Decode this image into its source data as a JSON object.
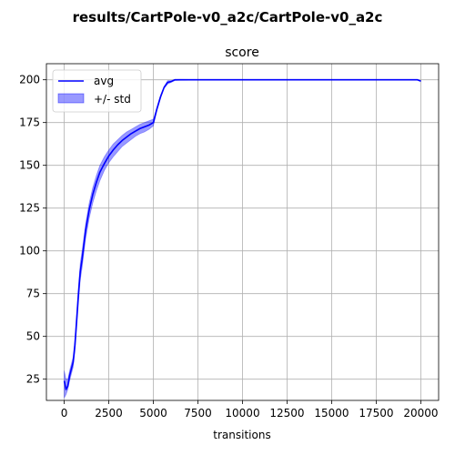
{
  "suptitle": "results/CartPole-v0_a2c/CartPole-v0_a2c",
  "chart_data": {
    "type": "line",
    "title": "score",
    "xlabel": "transitions",
    "ylabel": "",
    "xlim": [
      -1000,
      21000
    ],
    "ylim": [
      12.6,
      209.4
    ],
    "xticks": [
      0,
      2500,
      5000,
      7500,
      10000,
      12500,
      15000,
      17500,
      20000
    ],
    "yticks": [
      25,
      50,
      75,
      100,
      125,
      150,
      175,
      200
    ],
    "grid": true,
    "legend_placement": "upper-left",
    "series": [
      {
        "name": "avg",
        "kind": "line",
        "color": "#0000ff",
        "x": [
          0,
          100,
          200,
          300,
          400,
          500,
          600,
          700,
          800,
          900,
          1000,
          1200,
          1400,
          1600,
          1800,
          2000,
          2250,
          2500,
          2750,
          3000,
          3250,
          3500,
          3750,
          4000,
          4250,
          4500,
          4750,
          5000,
          5200,
          5400,
          5600,
          5800,
          6000,
          6200,
          6500,
          7000,
          7500,
          10000,
          15000,
          19800,
          20000
        ],
        "y": [
          24,
          19,
          21,
          27,
          31,
          35,
          45,
          60,
          75,
          88,
          95,
          112,
          124,
          133,
          140,
          146,
          151,
          155.5,
          159,
          162,
          164.5,
          166.5,
          168.5,
          170,
          171.5,
          172.5,
          173.5,
          175,
          183,
          190,
          195.5,
          198.5,
          199,
          200,
          200,
          200,
          200,
          200,
          200,
          200,
          199.2
        ]
      },
      {
        "name": "+/- std",
        "kind": "band",
        "color": "#0000ff",
        "opacity": 0.4,
        "x": [
          0,
          100,
          200,
          300,
          400,
          500,
          600,
          700,
          800,
          900,
          1000,
          1200,
          1400,
          1600,
          1800,
          2000,
          2250,
          2500,
          2750,
          3000,
          3250,
          3500,
          3750,
          4000,
          4250,
          4500,
          4750,
          5000,
          5200,
          5400,
          5600,
          5800,
          6000,
          6200,
          6500,
          7000,
          7500,
          10000,
          15000,
          19800,
          20000
        ],
        "lower": [
          14,
          16,
          19,
          24,
          28,
          32,
          41,
          55,
          70,
          83,
          90,
          107,
          119,
          128,
          135,
          141,
          147,
          151.5,
          155,
          158,
          161,
          163,
          165,
          167,
          168.5,
          169.5,
          171,
          173,
          182,
          189,
          195,
          197.5,
          198.5,
          199.5,
          199.7,
          199.8,
          199.8,
          199.8,
          199.8,
          199.8,
          199
        ],
        "upper": [
          30,
          25,
          25,
          30,
          34,
          38,
          49,
          64,
          80,
          93,
          100,
          116,
          128,
          137,
          144,
          150,
          155,
          159,
          162.5,
          165,
          167.5,
          169.5,
          171,
          172.5,
          174,
          175,
          176,
          177,
          184,
          191,
          196,
          199.5,
          199.5,
          200.2,
          200.3,
          200.2,
          200.2,
          200.2,
          200.2,
          200.2,
          199.5
        ]
      }
    ]
  }
}
